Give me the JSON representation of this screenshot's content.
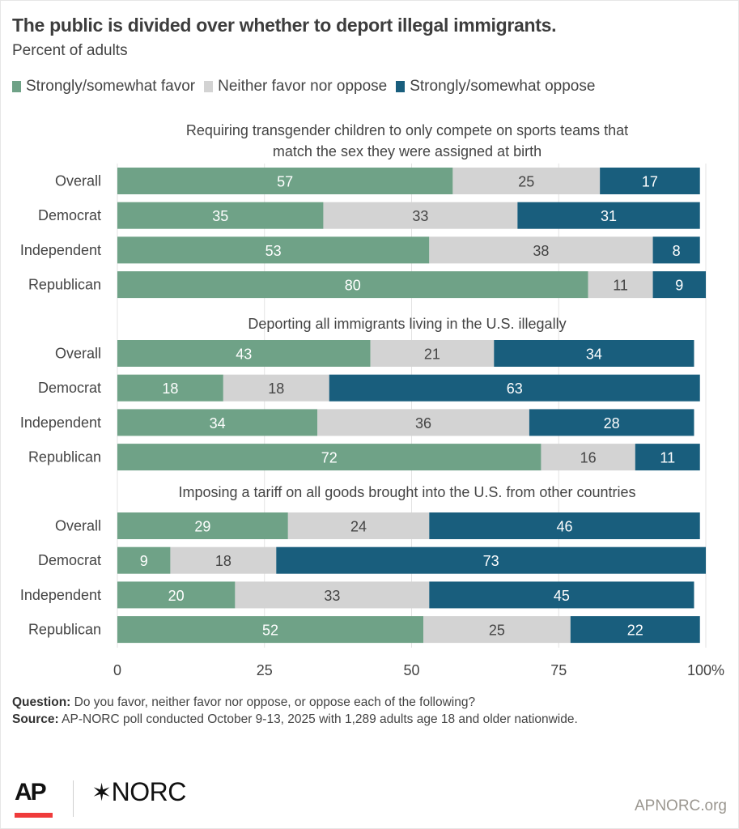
{
  "header": {
    "title": "The public is divided over whether to deport illegal immigrants.",
    "subtitle": "Percent of adults"
  },
  "legend": [
    {
      "label": "Strongly/somewhat favor",
      "color": "#6fa287"
    },
    {
      "label": "Neither favor nor oppose",
      "color": "#d3d3d3"
    },
    {
      "label": "Strongly/somewhat oppose",
      "color": "#195e7d"
    }
  ],
  "chart_data": {
    "type": "bar",
    "orientation": "horizontal-stacked",
    "title": "The public is divided over whether to deport illegal immigrants.",
    "subtitle": "Percent of adults",
    "xlabel": "",
    "ylabel": "",
    "xlim": [
      0,
      100
    ],
    "x_ticks": [
      "0",
      "25",
      "50",
      "75",
      "100%"
    ],
    "x_tick_values": [
      0,
      25,
      50,
      75,
      100
    ],
    "grid": true,
    "legend_position": "top-left",
    "series_names": [
      "Strongly/somewhat favor",
      "Neither favor nor oppose",
      "Strongly/somewhat oppose"
    ],
    "series_colors": [
      "#6fa287",
      "#d3d3d3",
      "#195e7d"
    ],
    "panels": [
      {
        "title": "Requiring transgender children to only compete on sports teams that match the sex they were assigned at birth",
        "title_lines": [
          "Requiring transgender children to only compete on sports teams that",
          "match the sex they were assigned at birth"
        ],
        "categories": [
          "Overall",
          "Democrat",
          "Independent",
          "Republican"
        ],
        "values": [
          [
            57,
            25,
            17
          ],
          [
            35,
            33,
            31
          ],
          [
            53,
            38,
            8
          ],
          [
            80,
            11,
            9
          ]
        ]
      },
      {
        "title": "Deporting all immigrants living in the U.S. illegally",
        "title_lines": [
          "Deporting all immigrants living in the U.S. illegally"
        ],
        "categories": [
          "Overall",
          "Democrat",
          "Independent",
          "Republican"
        ],
        "values": [
          [
            43,
            21,
            34
          ],
          [
            18,
            18,
            63
          ],
          [
            34,
            36,
            28
          ],
          [
            72,
            16,
            11
          ]
        ]
      },
      {
        "title": "Imposing a tariff on all goods brought into the U.S. from other countries",
        "title_lines": [
          "Imposing a tariff on all goods brought into the U.S. from other countries"
        ],
        "categories": [
          "Overall",
          "Democrat",
          "Independent",
          "Republican"
        ],
        "values": [
          [
            29,
            24,
            46
          ],
          [
            9,
            18,
            73
          ],
          [
            20,
            33,
            45
          ],
          [
            52,
            25,
            22
          ]
        ]
      }
    ]
  },
  "footer": {
    "question_label": "Question:",
    "question_text": " Do you favor, neither favor nor oppose, or oppose each of the following?",
    "source_label": "Source:",
    "source_text": " AP-NORC poll conducted October 9-13, 2025 with 1,289 adults age 18 and older nationwide.",
    "logo_ap": "AP",
    "logo_norc": "NORC",
    "site": "APNORC.org"
  }
}
